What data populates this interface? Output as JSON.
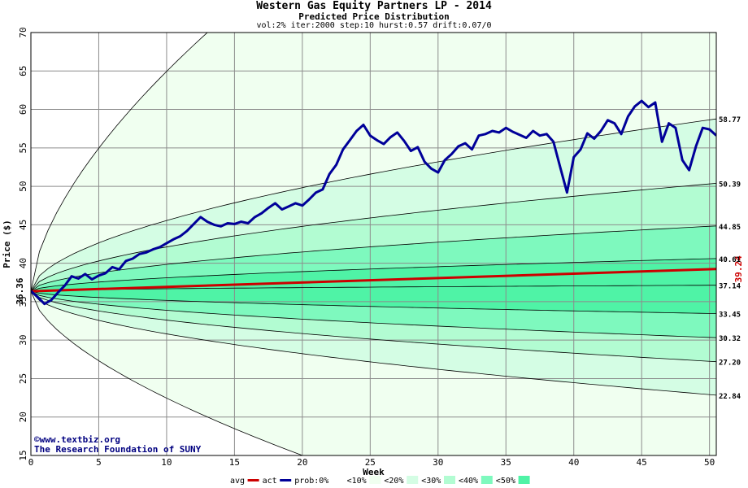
{
  "chart_data": {
    "type": "area",
    "title": "Western Gas Equity Partners LP - 2014",
    "subtitle": "Predicted Price Distribution",
    "params": "vol:2% iter:2000 step:10 hurst:0.57 drift:0.07/0",
    "xlabel": "Week",
    "ylabel": "Price ($)",
    "xlim": [
      0,
      50.5
    ],
    "ylim": [
      15,
      70
    ],
    "x_ticks": [
      0,
      5,
      10,
      15,
      20,
      25,
      30,
      35,
      40,
      45,
      50
    ],
    "y_ticks": [
      15,
      20,
      25,
      30,
      35,
      40,
      45,
      50,
      55,
      60,
      65,
      70
    ],
    "grid": true,
    "start_price": 36.36,
    "end_avg_price": 39.24,
    "start_label": "36.36",
    "end_avg_label": "39.24",
    "band_levels": [
      {
        "label": "58.77",
        "value": 58.77
      },
      {
        "label": "50.39",
        "value": 50.39
      },
      {
        "label": "44.85",
        "value": 44.85
      },
      {
        "label": "40.61",
        "value": 40.61
      },
      {
        "label": "37.14",
        "value": 37.14
      },
      {
        "label": "33.45",
        "value": 33.45
      },
      {
        "label": "30.32",
        "value": 30.32
      },
      {
        "label": "27.20",
        "value": 27.2
      },
      {
        "label": "22.84",
        "value": 22.84
      }
    ],
    "outer_envelope": {
      "upper_end_at_week_13": 70,
      "lower_end_at_week_20": 15
    },
    "series": [
      {
        "name": "avg",
        "color": "#cc0000",
        "x": [
          0,
          50.5
        ],
        "y": [
          36.36,
          39.24
        ]
      },
      {
        "name": "act",
        "color": "#000099",
        "x": [
          0,
          0.5,
          1,
          1.5,
          2,
          2.5,
          3,
          3.5,
          4,
          4.5,
          5,
          5.5,
          6,
          6.5,
          7,
          7.5,
          8,
          8.5,
          9,
          9.5,
          10,
          10.5,
          11,
          11.5,
          12,
          12.5,
          13,
          13.5,
          14,
          14.5,
          15,
          15.5,
          16,
          16.5,
          17,
          17.5,
          18,
          18.5,
          19,
          19.5,
          20,
          20.5,
          21,
          21.5,
          22,
          22.5,
          23,
          23.5,
          24,
          24.5,
          25,
          25.5,
          26,
          26.5,
          27,
          27.5,
          28,
          28.5,
          29,
          29.5,
          30,
          30.5,
          31,
          31.5,
          32,
          32.5,
          33,
          33.5,
          34,
          34.5,
          35,
          35.5,
          36,
          36.5,
          37,
          37.5,
          38,
          38.5,
          39,
          39.5,
          40,
          40.5,
          41,
          41.5,
          42,
          42.5,
          43,
          43.5,
          44,
          44.5,
          45,
          45.5,
          46,
          46.5,
          47,
          47.5,
          48,
          48.5,
          49,
          49.5,
          50,
          50.5
        ],
        "y": [
          36.4,
          35.6,
          34.7,
          35.2,
          36.2,
          37.1,
          38.3,
          38.0,
          38.6,
          37.9,
          38.4,
          38.7,
          39.5,
          39.2,
          40.3,
          40.6,
          41.2,
          41.4,
          41.8,
          42.1,
          42.6,
          43.1,
          43.5,
          44.2,
          45.1,
          46.0,
          45.4,
          45.0,
          44.8,
          45.2,
          45.1,
          45.4,
          45.2,
          46.0,
          46.5,
          47.2,
          47.8,
          47.0,
          47.4,
          47.8,
          47.5,
          48.3,
          49.2,
          49.6,
          51.6,
          52.8,
          54.8,
          56.0,
          57.2,
          58.0,
          56.6,
          56.0,
          55.5,
          56.4,
          57.0,
          55.9,
          54.6,
          55.1,
          53.2,
          52.3,
          51.8,
          53.4,
          54.2,
          55.2,
          55.6,
          54.8,
          56.6,
          56.8,
          57.2,
          57.0,
          57.6,
          57.1,
          56.7,
          56.3,
          57.2,
          56.6,
          56.8,
          55.8,
          52.5,
          49.2,
          53.8,
          54.8,
          56.9,
          56.2,
          57.2,
          58.6,
          58.2,
          56.8,
          59.1,
          60.4,
          61.1,
          60.3,
          60.9,
          55.8,
          58.2,
          57.6,
          53.4,
          52.1,
          55.2,
          57.6,
          57.4,
          56.6
        ]
      }
    ],
    "legend": [
      {
        "label": "avg",
        "color": "#cc0000",
        "kind": "line"
      },
      {
        "label": "act",
        "color": "#000099",
        "kind": "line"
      },
      {
        "label": "prob:0%",
        "color": "#ffffff",
        "kind": "box"
      },
      {
        "label": "<10%",
        "color": "#f0fff0",
        "kind": "box"
      },
      {
        "label": "<20%",
        "color": "#d4fde4",
        "kind": "box"
      },
      {
        "label": "<30%",
        "color": "#b2fcd2",
        "kind": "box"
      },
      {
        "label": "<40%",
        "color": "#7ef9be",
        "kind": "box"
      },
      {
        "label": "<50%",
        "color": "#4ff3a6",
        "kind": "box"
      }
    ],
    "legend_placement": "bottom"
  },
  "credits": {
    "line1": "www.textbiz.org",
    "line2": "The Research Foundation of SUNY",
    "copyright_symbol": "©"
  },
  "colors": {
    "band_lightest": "#f0fff0",
    "band_light": "#d4fde4",
    "band_mid": "#b2fcd2",
    "band_strong": "#7ef9be",
    "band_core": "#4ff3a6",
    "avg": "#cc0000",
    "act": "#000099"
  }
}
